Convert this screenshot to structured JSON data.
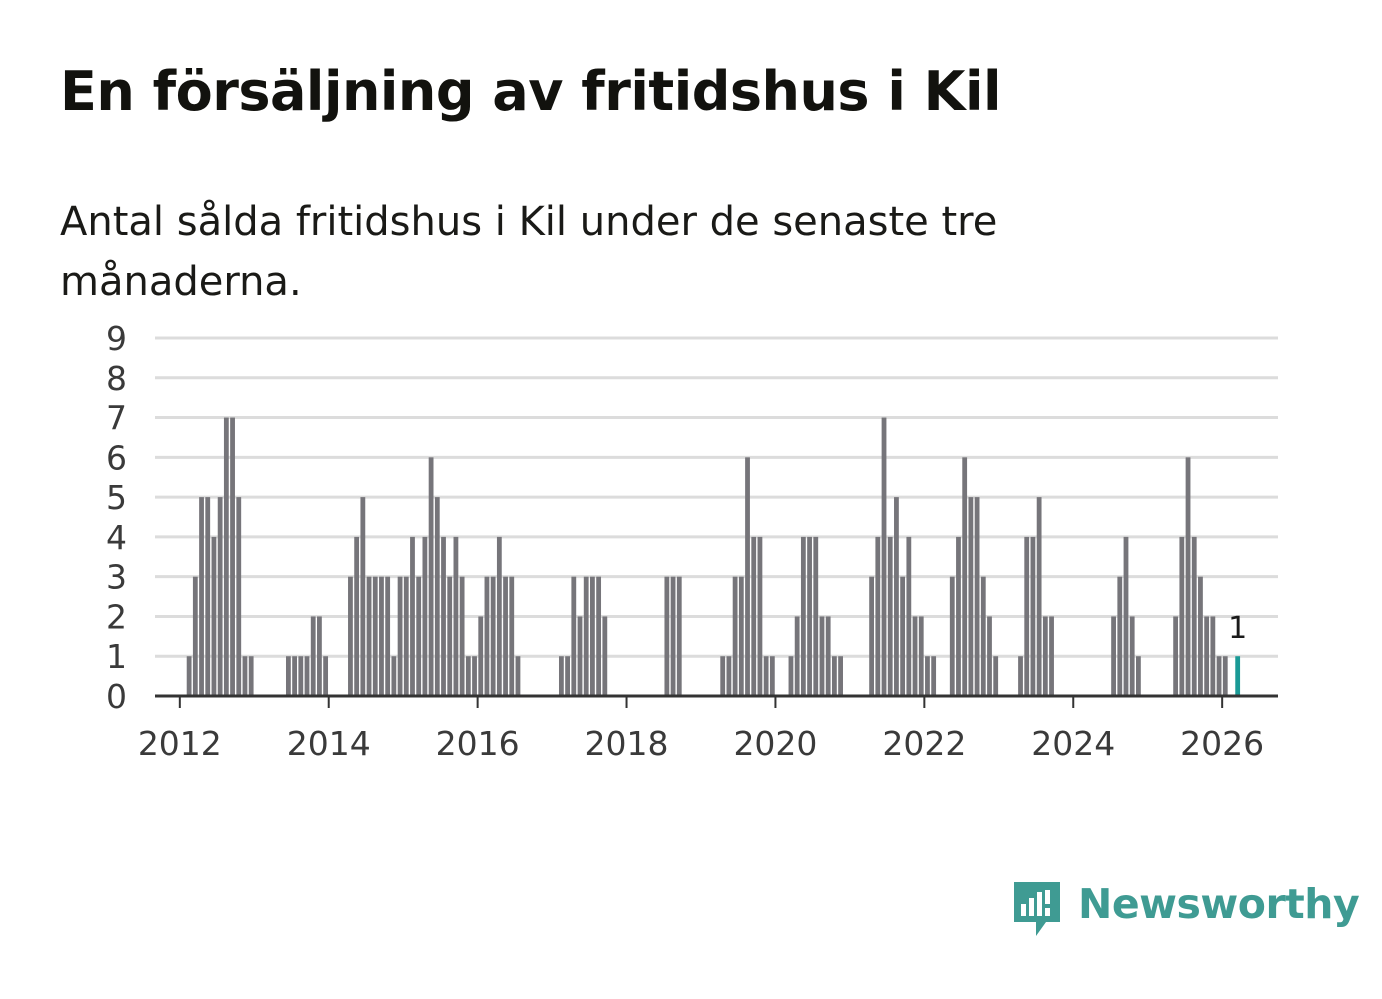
{
  "title": "En försäljning av fritidshus i Kil",
  "subtitle": "Antal sålda fritidshus i Kil under de senaste tre månaderna.",
  "brand": {
    "name": "Newsworthy",
    "icon": "newsworthy-logo-icon",
    "color": "#3f9b93"
  },
  "colors": {
    "bar": "#76757a",
    "highlight": "#1a9a96",
    "grid": "#dcdcdc",
    "axis": "#333333"
  },
  "chart_data": {
    "type": "bar",
    "title": "En försäljning av fritidshus i Kil",
    "xlabel": "",
    "ylabel": "",
    "ylim": [
      0,
      9
    ],
    "xlim": [
      "2011-09",
      "2026-10"
    ],
    "yticks": [
      "0",
      "1",
      "2",
      "3",
      "4",
      "5",
      "6",
      "7",
      "8",
      "9"
    ],
    "xticks": [
      "2012",
      "2014",
      "2016",
      "2018",
      "2020",
      "2022",
      "2024",
      "2026"
    ],
    "grid": true,
    "legend": "none",
    "start_month": "2012-01",
    "values": [
      0,
      1,
      3,
      5,
      5,
      4,
      5,
      7,
      7,
      5,
      1,
      1,
      0,
      0,
      0,
      0,
      0,
      1,
      1,
      1,
      1,
      2,
      2,
      1,
      0,
      0,
      0,
      3,
      4,
      5,
      3,
      3,
      3,
      3,
      1,
      3,
      3,
      4,
      3,
      4,
      6,
      5,
      4,
      3,
      4,
      3,
      1,
      1,
      2,
      3,
      3,
      4,
      3,
      3,
      1,
      0,
      0,
      0,
      0,
      0,
      0,
      1,
      1,
      3,
      2,
      3,
      3,
      3,
      2,
      0,
      0,
      0,
      0,
      0,
      0,
      0,
      0,
      0,
      3,
      3,
      3,
      0,
      0,
      0,
      0,
      0,
      0,
      1,
      1,
      3,
      3,
      6,
      4,
      4,
      1,
      1,
      0,
      0,
      1,
      2,
      4,
      4,
      4,
      2,
      2,
      1,
      1,
      0,
      0,
      0,
      0,
      3,
      4,
      7,
      4,
      5,
      3,
      4,
      2,
      2,
      1,
      1,
      0,
      0,
      3,
      4,
      6,
      5,
      5,
      3,
      2,
      1,
      0,
      0,
      0,
      1,
      4,
      4,
      5,
      2,
      2,
      0,
      0,
      0,
      0,
      0,
      0,
      0,
      0,
      0,
      2,
      3,
      4,
      2,
      1,
      0,
      0,
      0,
      0,
      0,
      2,
      4,
      6,
      4,
      3,
      2,
      2,
      1,
      1,
      0,
      1
    ],
    "highlight": {
      "month": "2026-03",
      "value": 1,
      "label": "1"
    }
  }
}
